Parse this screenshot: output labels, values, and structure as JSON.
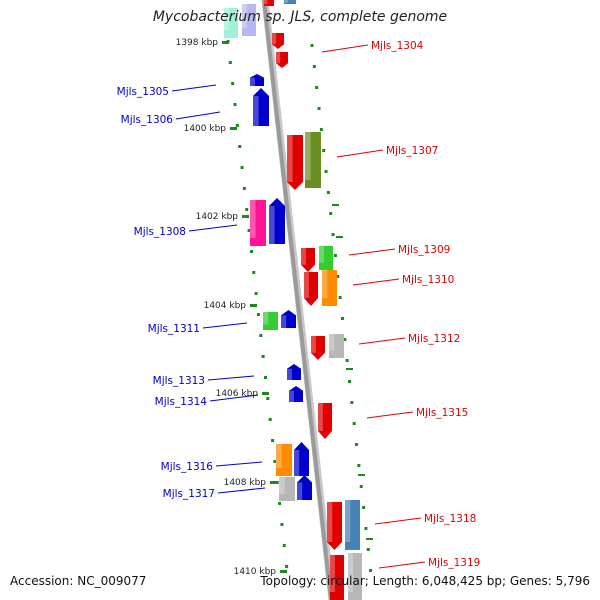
{
  "title": "Mycobacterium sp. JLS, complete genome",
  "footer": {
    "accession": "Accession: NC_009077",
    "summary": "Topology: circular; Length: 6,048,425 bp; Genes: 5,796"
  },
  "ticks": [
    {
      "label": "1398 kbp"
    },
    {
      "label": "1400 kbp"
    },
    {
      "label": "1402 kbp"
    },
    {
      "label": "1404 kbp"
    },
    {
      "label": "1406 kbp"
    },
    {
      "label": "1408 kbp"
    },
    {
      "label": "1410 kbp"
    }
  ],
  "genes_forward": [
    {
      "label": "Mjls_1304",
      "color": "#e00000"
    },
    {
      "label": "Mjls_1307",
      "color": "#e00000"
    },
    {
      "label": "Mjls_1309",
      "color": "#e00000"
    },
    {
      "label": "Mjls_1310",
      "color": "#e00000"
    },
    {
      "label": "Mjls_1312",
      "color": "#e00000"
    },
    {
      "label": "Mjls_1315",
      "color": "#e00000"
    },
    {
      "label": "Mjls_1318",
      "color": "#e00000"
    },
    {
      "label": "Mjls_1319",
      "color": "#e00000"
    }
  ],
  "genes_reverse": [
    {
      "label": "Mjls_1305",
      "color": "#0000cc"
    },
    {
      "label": "Mjls_1306",
      "color": "#0000cc"
    },
    {
      "label": "Mjls_1308",
      "color": "#0000cc"
    },
    {
      "label": "Mjls_1311",
      "color": "#0000cc"
    },
    {
      "label": "Mjls_1313",
      "color": "#0000cc"
    },
    {
      "label": "Mjls_1314",
      "color": "#0000cc"
    },
    {
      "label": "Mjls_1316",
      "color": "#0000cc"
    },
    {
      "label": "Mjls_1317",
      "color": "#0000cc"
    }
  ],
  "colors": {
    "forward": "#e00000",
    "reverse": "#0000cc",
    "backbone": "#9a9a9a",
    "track": "#1a8a1a",
    "olive": "#6b8e23",
    "orange": "#ff8c00",
    "green": "#33cc33",
    "magenta": "#ff1493",
    "steelblue": "#4682b4",
    "gray": "#b8b8b8",
    "mint": "#a0f0d8",
    "lavender": "#b8b8f0"
  }
}
